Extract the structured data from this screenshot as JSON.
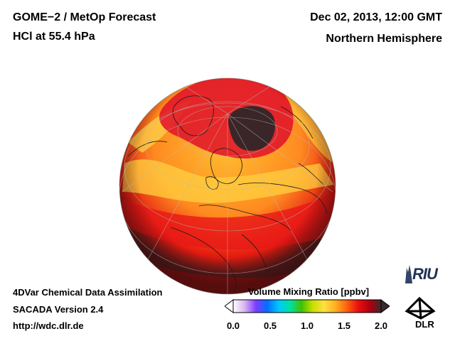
{
  "header": {
    "title": "GOME−2 / MetOp Forecast",
    "subtitle": "HCl at 55.4 hPa",
    "date": "Dec 02, 2013, 12:00 GMT",
    "region": "Northern Hemisphere"
  },
  "footer": {
    "line1": "4DVar Chemical Data Assimilation",
    "line2": "SACADA Version 2.4",
    "url": "http://wdc.dlr.de"
  },
  "colorbar": {
    "title": "Volume Mixing Ratio [ppbv]",
    "ticks": [
      "0.0",
      "0.5",
      "1.0",
      "1.5",
      "2.0"
    ],
    "range": [
      0.0,
      2.0
    ],
    "colors": [
      "#ffffff",
      "#d8b6f0",
      "#7d3cff",
      "#0070ff",
      "#00c8ff",
      "#00e0a0",
      "#40c000",
      "#c8e000",
      "#ffe040",
      "#ffb020",
      "#ff6010",
      "#e81010",
      "#b00010",
      "#3a2a2a"
    ]
  },
  "logos": {
    "riu": "RIU",
    "dlr": "DLR"
  }
}
